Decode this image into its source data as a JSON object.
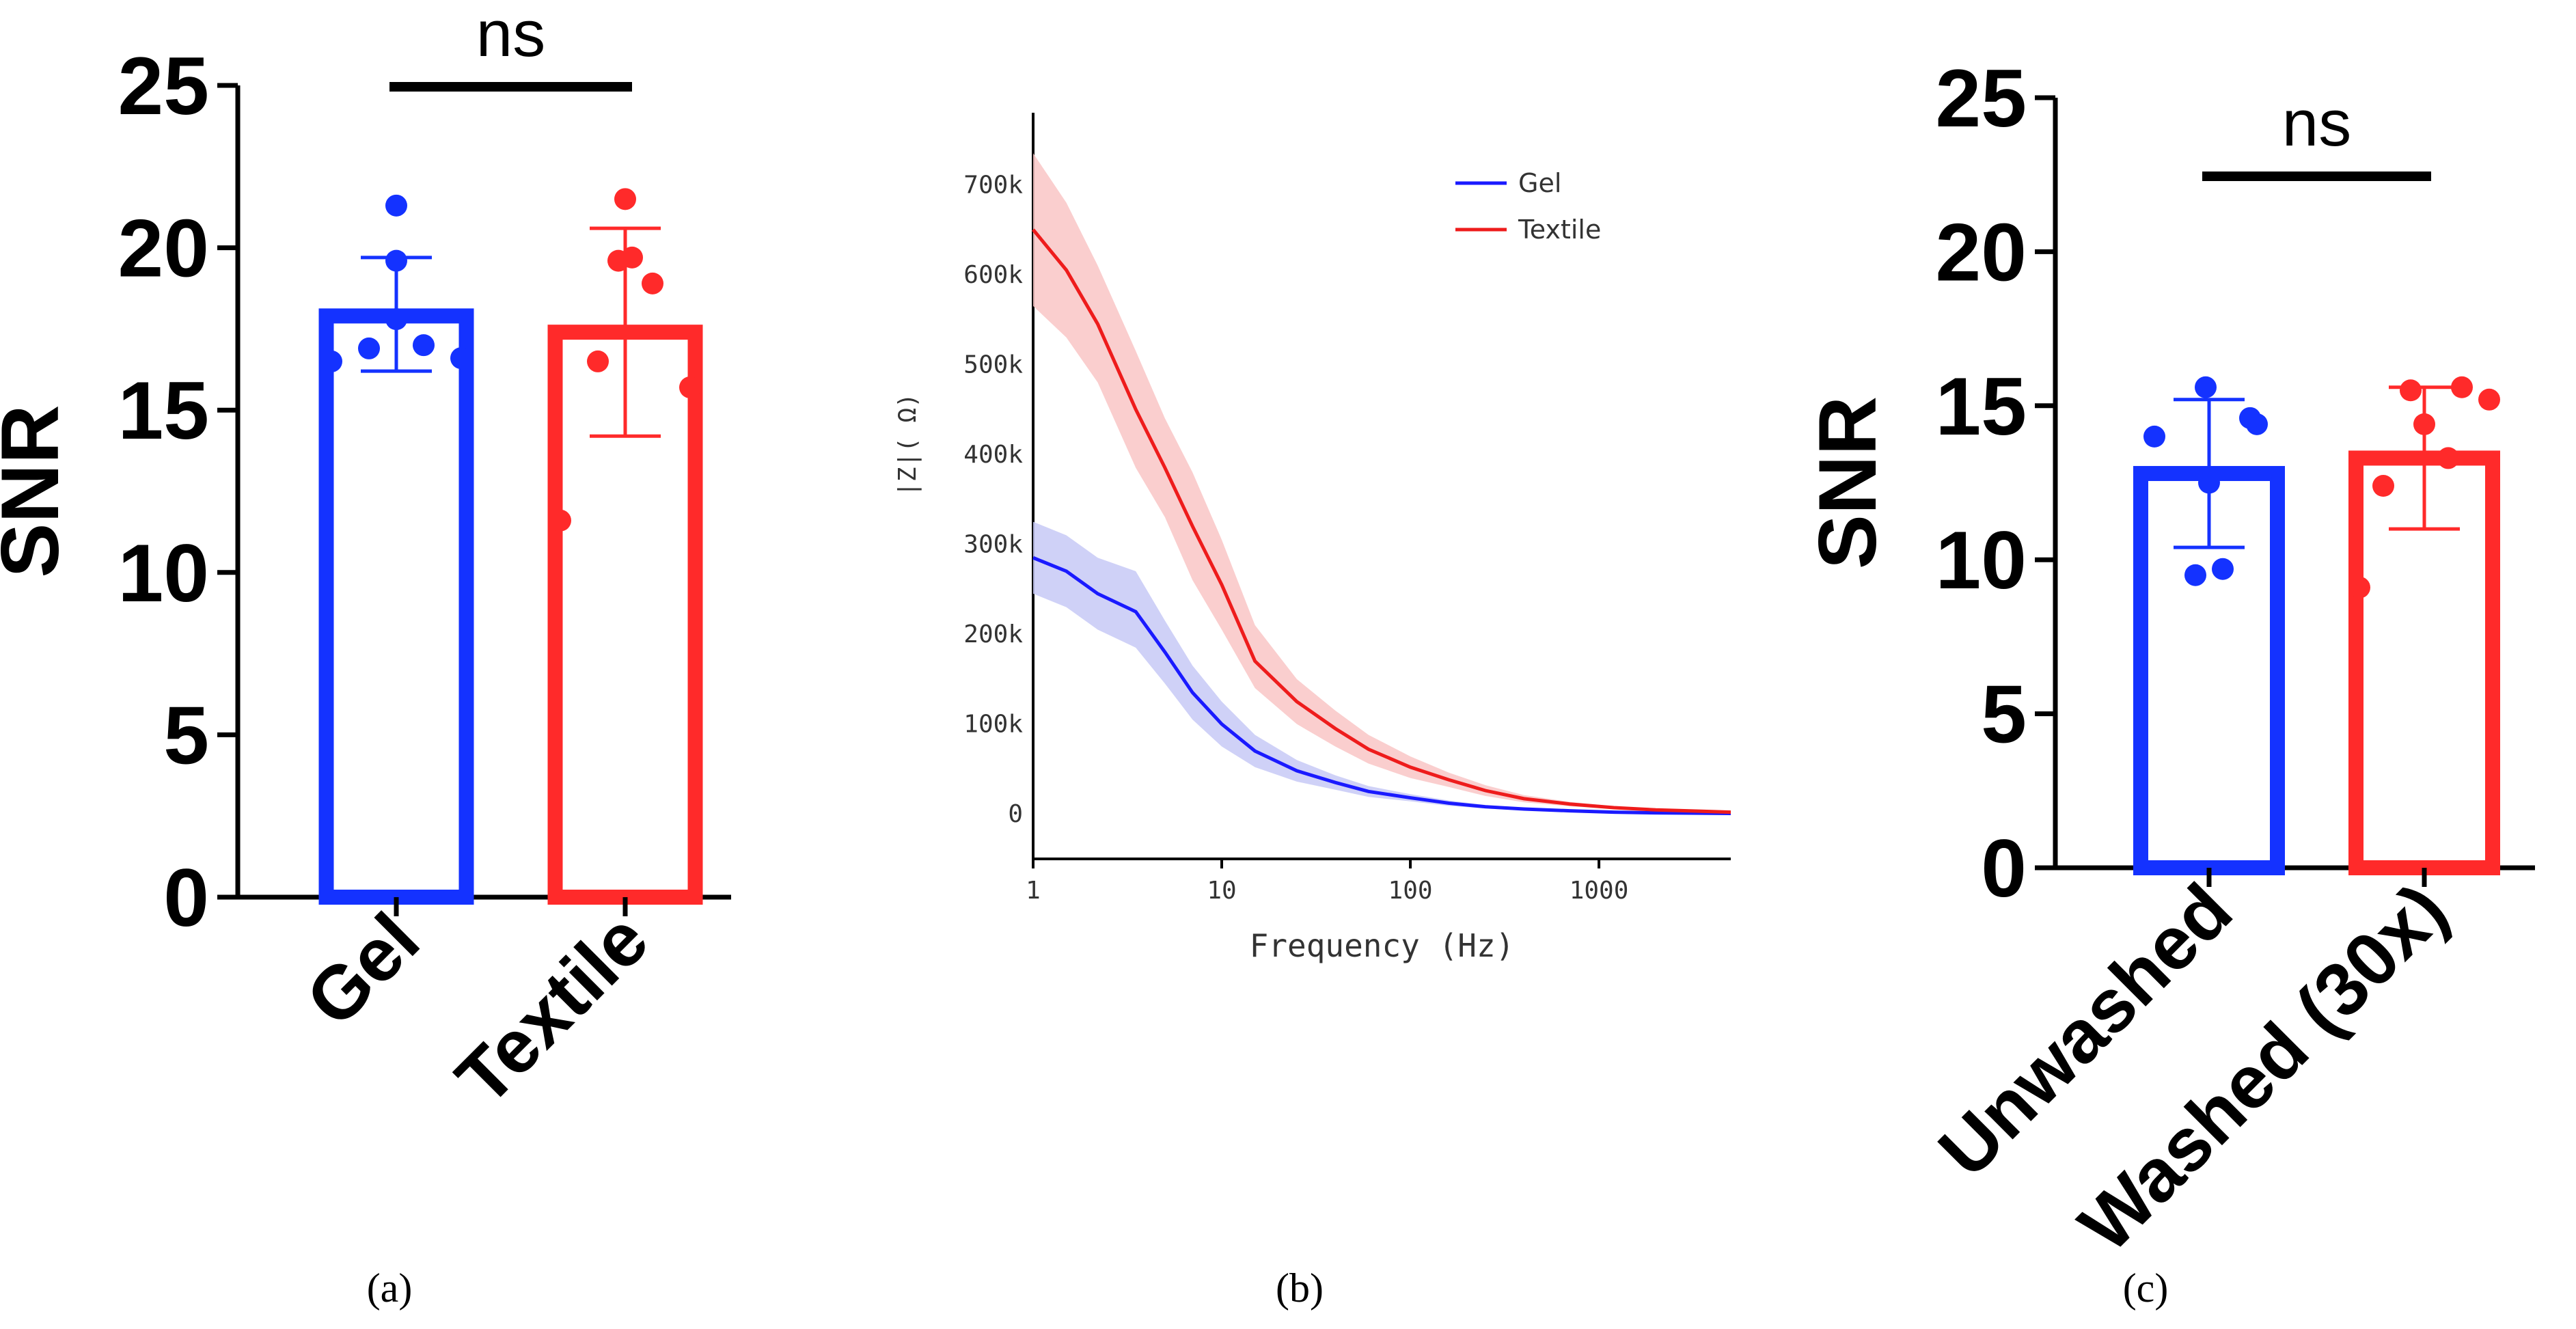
{
  "colors": {
    "gel": "#1432ff",
    "textile": "#ff2a2a",
    "gel_line": "#1a1aff",
    "textile_line": "#ee1c1c",
    "gel_band": "#c7c9f6",
    "textile_band": "#f9c6c6"
  },
  "chart_data": [
    {
      "type": "bar",
      "panel": "(a)",
      "panel_letter": "a",
      "categories": [
        "Gel",
        "Textile"
      ],
      "values": [
        17.9,
        17.4
      ],
      "errors": [
        [
          16.2,
          19.7
        ],
        [
          14.2,
          20.6
        ]
      ],
      "points": [
        [
          16.5,
          16.6,
          16.9,
          17.0,
          17.8,
          19.6,
          21.3
        ],
        [
          11.6,
          15.7,
          16.5,
          18.9,
          19.6,
          19.7,
          21.5
        ]
      ],
      "ylabel": "SNR",
      "ylim": [
        0,
        25
      ],
      "yticks": [
        "0",
        "5",
        "10",
        "15",
        "20",
        "25"
      ],
      "significance": "ns"
    },
    {
      "type": "line",
      "panel": "(b)",
      "panel_letter": "b",
      "xlabel": "Frequency (Hz)",
      "ylabel": "|Z|( Ω)",
      "xscale": "log",
      "xlim": [
        1,
        5000
      ],
      "ylim": [
        -50000,
        780000
      ],
      "xticks": [
        "1",
        "10",
        "100",
        "1000"
      ],
      "yticks": [
        "0",
        "100k",
        "200k",
        "300k",
        "400k",
        "500k",
        "600k",
        "700k"
      ],
      "legend": "top-right",
      "x": [
        1,
        1.5,
        2.2,
        3.5,
        5,
        7,
        10,
        15,
        25,
        40,
        60,
        100,
        160,
        250,
        400,
        700,
        1200,
        2000,
        3500,
        5000
      ],
      "series": [
        {
          "name": "Gel",
          "values": [
            285000,
            270000,
            245000,
            225000,
            180000,
            135000,
            100000,
            70000,
            48000,
            35000,
            25000,
            18000,
            12000,
            8000,
            5500,
            3500,
            2000,
            1200,
            800,
            500
          ],
          "upper": [
            325000,
            310000,
            285000,
            270000,
            215000,
            165000,
            125000,
            88000,
            60000,
            43000,
            31000,
            22000,
            15000,
            10000,
            7000,
            4500,
            2700,
            1600,
            1000,
            600
          ],
          "lower": [
            245000,
            230000,
            205000,
            185000,
            145000,
            105000,
            75000,
            52000,
            36000,
            27000,
            19000,
            14000,
            9000,
            6000,
            4000,
            2500,
            1300,
            800,
            600,
            400
          ]
        },
        {
          "name": "Textile",
          "values": [
            650000,
            605000,
            545000,
            450000,
            385000,
            320000,
            255000,
            170000,
            125000,
            95000,
            72000,
            52000,
            38000,
            26000,
            17000,
            11000,
            7000,
            4500,
            3000,
            2000
          ],
          "upper": [
            735000,
            680000,
            610000,
            515000,
            440000,
            380000,
            305000,
            210000,
            150000,
            115000,
            88000,
            64000,
            46000,
            32000,
            21000,
            13500,
            8500,
            5500,
            3500,
            2500
          ],
          "lower": [
            565000,
            530000,
            480000,
            385000,
            330000,
            260000,
            205000,
            140000,
            100000,
            75000,
            56000,
            40000,
            30000,
            20000,
            13000,
            8500,
            5500,
            3500,
            2500,
            1500
          ]
        }
      ]
    },
    {
      "type": "bar",
      "panel": "(c)",
      "panel_letter": "c",
      "categories": [
        "Unwashed",
        "Washed (30x)"
      ],
      "values": [
        12.8,
        13.3
      ],
      "errors": [
        [
          10.4,
          15.2
        ],
        [
          11.0,
          15.6
        ]
      ],
      "points": [
        [
          9.5,
          9.7,
          12.5,
          14.0,
          14.4,
          14.6,
          15.6
        ],
        [
          9.1,
          12.4,
          13.3,
          14.4,
          15.2,
          15.5,
          15.6
        ]
      ],
      "ylabel": "SNR",
      "ylim": [
        0,
        25
      ],
      "yticks": [
        "0",
        "5",
        "10",
        "15",
        "20",
        "25"
      ],
      "significance": "ns"
    }
  ]
}
